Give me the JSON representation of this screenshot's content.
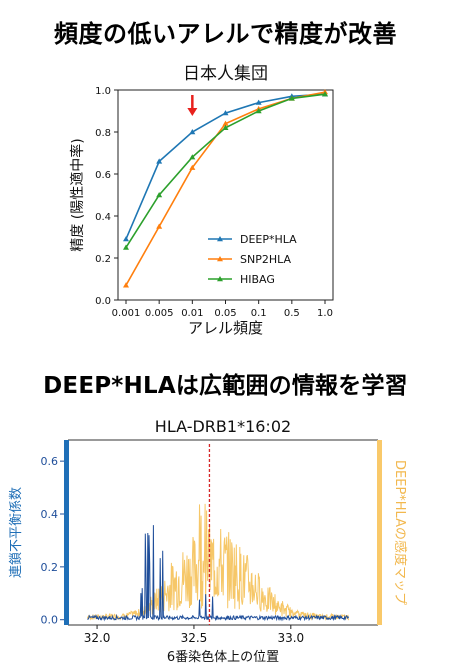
{
  "headings": {
    "top": "頻度の低いアレルで精度が改善",
    "bottom": "DEEP*HLAは広範囲の情報を学習"
  },
  "chart_data": [
    {
      "type": "line",
      "title": "日本人集団",
      "xlabel": "アレル頻度",
      "ylabel": "精度 (陽性適中率)",
      "categories": [
        "0.001",
        "0.005",
        "0.01",
        "0.05",
        "0.1",
        "0.5",
        "1.0"
      ],
      "ylim": [
        0.0,
        1.0
      ],
      "yticks": [
        "0.0",
        "0.2",
        "0.4",
        "0.6",
        "0.8",
        "1.0"
      ],
      "series": [
        {
          "name": "DEEP*HLA",
          "color": "#1f77b4",
          "marker": "triangle",
          "values": [
            0.29,
            0.66,
            0.8,
            0.89,
            0.94,
            0.97,
            0.98
          ]
        },
        {
          "name": "SNP2HLA",
          "color": "#ff7f0e",
          "marker": "triangle",
          "values": [
            0.07,
            0.35,
            0.63,
            0.84,
            0.91,
            0.96,
            0.99
          ]
        },
        {
          "name": "HIBAG",
          "color": "#2ca02c",
          "marker": "triangle",
          "values": [
            0.25,
            0.5,
            0.68,
            0.82,
            0.9,
            0.96,
            0.98
          ]
        }
      ],
      "annotation": {
        "type": "arrow",
        "at_category": "0.01",
        "color": "#e8211d"
      },
      "legend": "lower-right",
      "grid": false
    },
    {
      "type": "line",
      "title": "HLA-DRB1*16:02",
      "xlabel": "6番染色体上の位置",
      "ylabel": "連鎖不平衡係数",
      "ylabel_right": "DEEP*HLAの感度マップ",
      "xlim": [
        31.85,
        33.45
      ],
      "xticks": [
        "32.0",
        "32.5",
        "33.0"
      ],
      "ylim": [
        -0.02,
        0.68
      ],
      "yticks": [
        "0.0",
        "0.2",
        "0.4",
        "0.6"
      ],
      "left_axis_color": "#1f6fb7",
      "right_axis_color": "#f9c96a",
      "marker_line": {
        "x": 32.58,
        "color": "#d62728",
        "style": "dashed"
      },
      "series": [
        {
          "name": "連鎖不平衡係数",
          "color": "#1f4e9a",
          "role": "ld",
          "x_range": [
            31.95,
            33.3
          ]
        },
        {
          "name": "DEEP*HLAの感度マップ",
          "color": "#f6c768",
          "role": "saliency",
          "x_range": [
            31.95,
            33.3
          ]
        }
      ],
      "legend": "none",
      "grid": false
    }
  ]
}
